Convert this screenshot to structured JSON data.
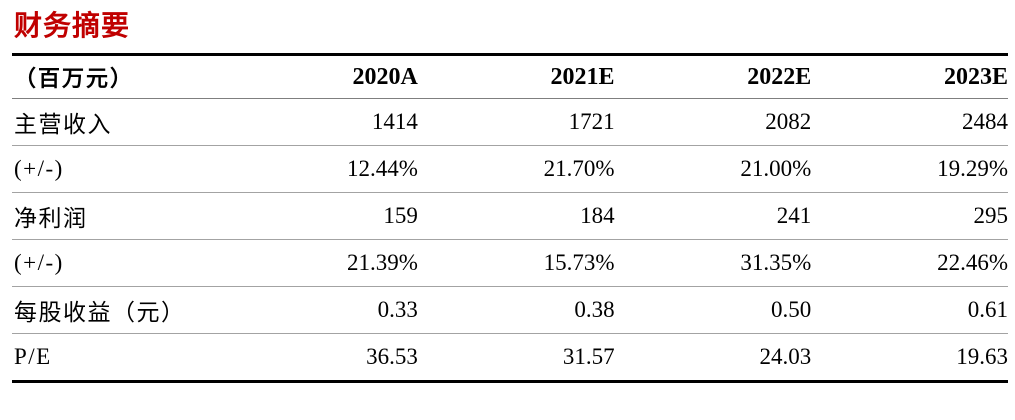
{
  "section": {
    "title": "财务摘要"
  },
  "table": {
    "unit_header": "（百万元）",
    "columns": [
      "2020A",
      "2021E",
      "2022E",
      "2023E"
    ],
    "rows": [
      {
        "label": "主营收入",
        "values": [
          "1414",
          "1721",
          "2082",
          "2484"
        ]
      },
      {
        "label": "(+/-)",
        "values": [
          "12.44%",
          "21.70%",
          "21.00%",
          "19.29%"
        ]
      },
      {
        "label": "净利润",
        "values": [
          "159",
          "184",
          "241",
          "295"
        ]
      },
      {
        "label": "(+/-)",
        "values": [
          "21.39%",
          "15.73%",
          "31.35%",
          "22.46%"
        ]
      },
      {
        "label": "每股收益（元）",
        "values": [
          "0.33",
          "0.38",
          "0.50",
          "0.61"
        ]
      },
      {
        "label": "P/E",
        "values": [
          "36.53",
          "31.57",
          "24.03",
          "19.63"
        ]
      }
    ]
  },
  "colors": {
    "title_red": "#c00000",
    "border_black": "#000000",
    "header_divider_gray": "#7f7f7f",
    "row_divider_gray": "#a3a3a3"
  }
}
